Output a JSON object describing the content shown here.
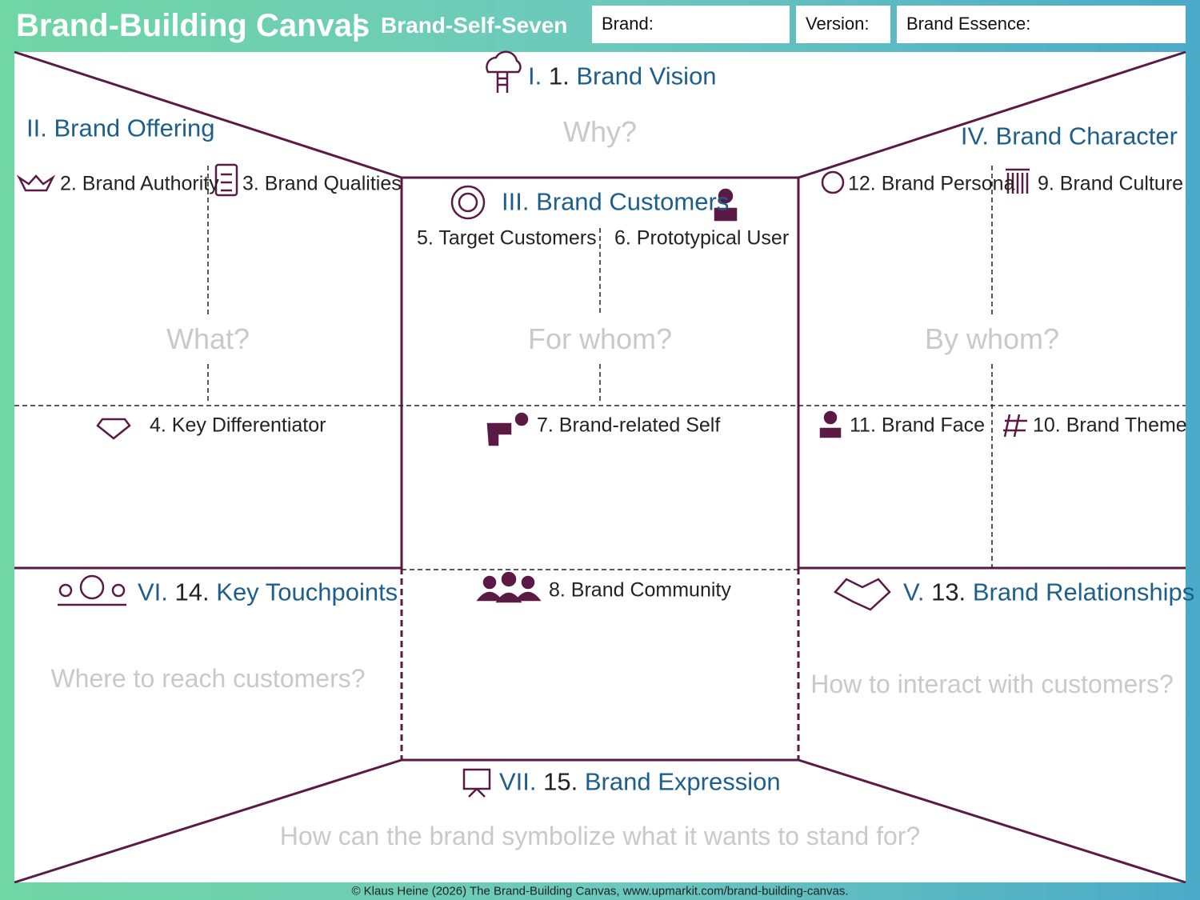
{
  "header": {
    "title": "Brand-Building Canvas",
    "separator": "|",
    "subtitle": "Brand-Self-Seven",
    "fields": [
      "Brand:",
      "Version:",
      "Brand Essence:"
    ]
  },
  "sections": {
    "vision": {
      "roman": "I.",
      "number": "1.",
      "name": "Brand Vision",
      "question": "Why?"
    },
    "offering": {
      "title": "II. Brand Offering",
      "question": "What?",
      "items": [
        "2. Brand Authority",
        "3. Brand Qualities",
        "4. Key Differentiator"
      ]
    },
    "customers": {
      "title": "III. Brand Customers",
      "question": "For whom?",
      "items": [
        "5. Target Customers",
        "6. Prototypical User",
        "7. Brand-related Self",
        "8. Brand Community"
      ]
    },
    "character": {
      "title": "IV. Brand Character",
      "question": "By whom?",
      "items": [
        "12. Brand Persona",
        "9. Brand Culture",
        "11. Brand Face",
        "10. Brand Theme"
      ]
    },
    "relationships": {
      "roman": "V.",
      "number": "13.",
      "name": "Brand Relationships",
      "question": "How to interact with customers?"
    },
    "touchpoints": {
      "roman": "VI.",
      "number": "14.",
      "name": "Key Touchpoints",
      "question": "Where to reach customers?"
    },
    "expression": {
      "roman": "VII.",
      "number": "15.",
      "name": "Brand Expression",
      "question": "How can the brand symbolize what it wants to stand for?"
    }
  },
  "footer": "© Klaus Heine (2026) The Brand-Building Canvas, www.upmarkit.com/brand-building-canvas."
}
